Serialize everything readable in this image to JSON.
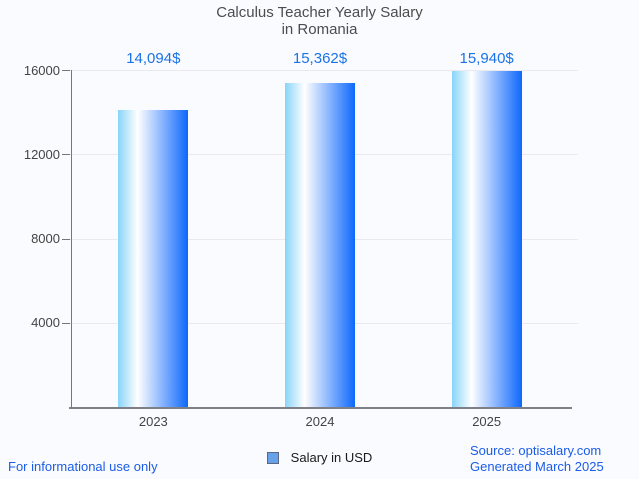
{
  "title": {
    "line1": "Calculus Teacher Yearly Salary",
    "line2": "in Romania"
  },
  "chart_data": {
    "type": "bar",
    "title": "Calculus Teacher Yearly Salary in Romania",
    "categories": [
      "2023",
      "2024",
      "2025"
    ],
    "series": [
      {
        "name": "Salary in USD",
        "values": [
          14094,
          15362,
          15940
        ]
      }
    ],
    "value_labels": [
      "14,094$",
      "15,362$",
      "15,940$"
    ],
    "xlabel": "",
    "ylabel": "",
    "ylim": [
      0,
      16000
    ],
    "yticks": [
      4000,
      8000,
      12000,
      16000
    ],
    "grid": "horizontal-only",
    "legend_position": "bottom",
    "colors": {
      "bar_gradient": [
        "#88d4f8",
        "#ffffff",
        "#0d68fc"
      ],
      "value_label": "#1a73e8",
      "legend_swatch_fill": "#68a1e8",
      "legend_swatch_border": "#5a6780",
      "axis_line": "#75757a",
      "gridline": "#e9e9ee",
      "tick_text": "#444444",
      "footer_text": "#1b5ce8",
      "background": "#fafbfe"
    }
  },
  "legend": {
    "label": "Salary in USD"
  },
  "footer": {
    "disclaimer": "For informational use only",
    "source": "Source: optisalary.com",
    "generated": "Generated March 2025"
  }
}
